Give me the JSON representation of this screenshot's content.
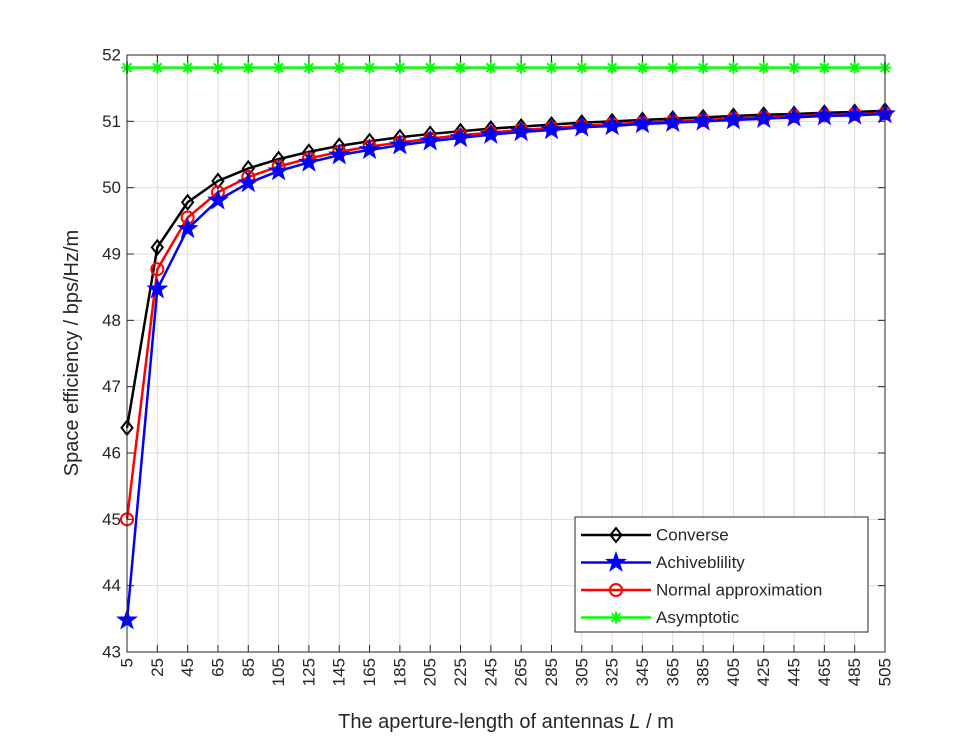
{
  "chart_data": {
    "type": "line",
    "title": "",
    "xlabel_prefix": "The aperture-length of antennas ",
    "xlabel_var": "L",
    "xlabel_suffix": " / m",
    "ylabel": "Space efficiency / bps/Hz/m",
    "xlim": [
      5,
      505
    ],
    "ylim": [
      43,
      52
    ],
    "xticks": [
      5,
      25,
      45,
      65,
      85,
      105,
      125,
      145,
      165,
      185,
      205,
      225,
      245,
      265,
      285,
      305,
      325,
      345,
      365,
      385,
      405,
      425,
      445,
      465,
      485,
      505
    ],
    "yticks": [
      43,
      44,
      45,
      46,
      47,
      48,
      49,
      50,
      51,
      52
    ],
    "grid": true,
    "legend_position": "bottom-right",
    "x": [
      5,
      25,
      45,
      65,
      85,
      105,
      125,
      145,
      165,
      185,
      205,
      225,
      245,
      265,
      285,
      305,
      325,
      345,
      365,
      385,
      405,
      425,
      445,
      465,
      485,
      505
    ],
    "series": [
      {
        "name": "Converse",
        "color": "#000000",
        "marker": "diamond",
        "values": [
          46.38,
          49.1,
          49.78,
          50.1,
          50.29,
          50.43,
          50.54,
          50.63,
          50.7,
          50.76,
          50.81,
          50.85,
          50.89,
          50.92,
          50.95,
          50.98,
          51.0,
          51.02,
          51.04,
          51.06,
          51.08,
          51.1,
          51.11,
          51.13,
          51.14,
          51.16
        ]
      },
      {
        "name": "Achiveblility",
        "color": "#0000ff",
        "marker": "star",
        "values": [
          43.48,
          48.47,
          49.38,
          49.81,
          50.07,
          50.25,
          50.38,
          50.49,
          50.57,
          50.64,
          50.7,
          50.75,
          50.8,
          50.84,
          50.87,
          50.91,
          50.93,
          50.96,
          50.98,
          51.0,
          51.02,
          51.04,
          51.06,
          51.08,
          51.09,
          51.11
        ]
      },
      {
        "name": "Normal approximation",
        "color": "#ff0000",
        "marker": "circle",
        "values": [
          45.0,
          48.77,
          49.55,
          49.93,
          50.16,
          50.32,
          50.44,
          50.54,
          50.62,
          50.68,
          50.74,
          50.79,
          50.83,
          50.87,
          50.9,
          50.93,
          50.96,
          50.98,
          51.0,
          51.02,
          51.04,
          51.06,
          51.08,
          51.09,
          51.11,
          51.12
        ]
      },
      {
        "name": "Asymptotic",
        "color": "#00ff00",
        "marker": "asterisk",
        "values": [
          51.81,
          51.81,
          51.81,
          51.81,
          51.81,
          51.81,
          51.81,
          51.81,
          51.81,
          51.81,
          51.81,
          51.81,
          51.81,
          51.81,
          51.81,
          51.81,
          51.81,
          51.81,
          51.81,
          51.81,
          51.81,
          51.81,
          51.81,
          51.81,
          51.81,
          51.81
        ]
      }
    ]
  }
}
